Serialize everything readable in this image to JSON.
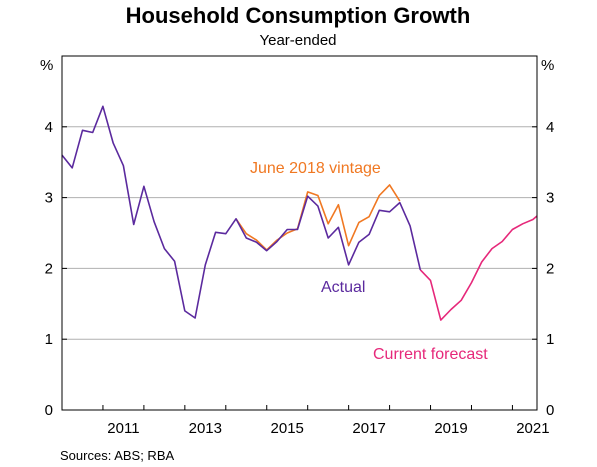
{
  "chart_data": {
    "type": "line",
    "title": "Household Consumption Growth",
    "subtitle": "Year-ended",
    "y_unit_left": "%",
    "y_unit_right": "%",
    "ylim": [
      0,
      5
    ],
    "y_ticks": [
      "0",
      "1",
      "2",
      "3",
      "4"
    ],
    "xlim": [
      2010.0,
      2021.6
    ],
    "x_ticks": [
      "2011",
      "2013",
      "2015",
      "2017",
      "2019",
      "2021"
    ],
    "grid": true,
    "source": "Sources:   ABS; RBA",
    "series": [
      {
        "name": "Actual",
        "color": "#5b2a9e",
        "x": [
          2010.0,
          2010.25,
          2010.5,
          2010.75,
          2011.0,
          2011.25,
          2011.5,
          2011.75,
          2012.0,
          2012.25,
          2012.5,
          2012.75,
          2013.0,
          2013.25,
          2013.5,
          2013.75,
          2014.0,
          2014.25,
          2014.5,
          2014.75,
          2015.0,
          2015.25,
          2015.5,
          2015.75,
          2016.0,
          2016.25,
          2016.5,
          2016.75,
          2017.0,
          2017.25,
          2017.5,
          2017.75,
          2018.0,
          2018.25,
          2018.5,
          2018.75
        ],
        "y": [
          3.6,
          3.42,
          3.95,
          3.92,
          4.29,
          3.77,
          3.45,
          2.62,
          3.16,
          2.66,
          2.28,
          2.1,
          1.4,
          1.3,
          2.05,
          2.51,
          2.49,
          2.7,
          2.43,
          2.37,
          2.25,
          2.38,
          2.55,
          2.55,
          3.02,
          2.88,
          2.43,
          2.58,
          2.05,
          2.37,
          2.48,
          2.82,
          2.8,
          2.93,
          2.6,
          1.98
        ]
      },
      {
        "name": "June 2018 vintage",
        "color": "#f07822",
        "x": [
          2014.25,
          2014.5,
          2014.75,
          2015.0,
          2015.25,
          2015.5,
          2015.75,
          2016.0,
          2016.25,
          2016.5,
          2016.75,
          2017.0,
          2017.25,
          2017.5,
          2017.75,
          2018.0
        ],
        "y": [
          2.7,
          2.49,
          2.4,
          2.26,
          2.4,
          2.5,
          2.56,
          3.08,
          3.03,
          2.63,
          2.9,
          2.32,
          2.65,
          2.73,
          3.03,
          3.18
        ]
      },
      {
        "name": "Current forecast",
        "color": "#e6287a",
        "x": [
          2018.75,
          2019.0,
          2019.25,
          2019.5,
          2019.75,
          2020.0,
          2020.25,
          2020.5,
          2020.75,
          2021.0,
          2021.25,
          2021.5
        ],
        "y": [
          1.98,
          1.83,
          1.27,
          1.42,
          1.55,
          1.8,
          2.09,
          2.28,
          2.38,
          2.55,
          2.63,
          2.69
        ]
      }
    ],
    "extra_points": {
      "forecast_end": {
        "x": 2021.6,
        "y": 2.74
      },
      "vintage_end": {
        "x": 2018.25,
        "y": 2.95
      }
    }
  }
}
